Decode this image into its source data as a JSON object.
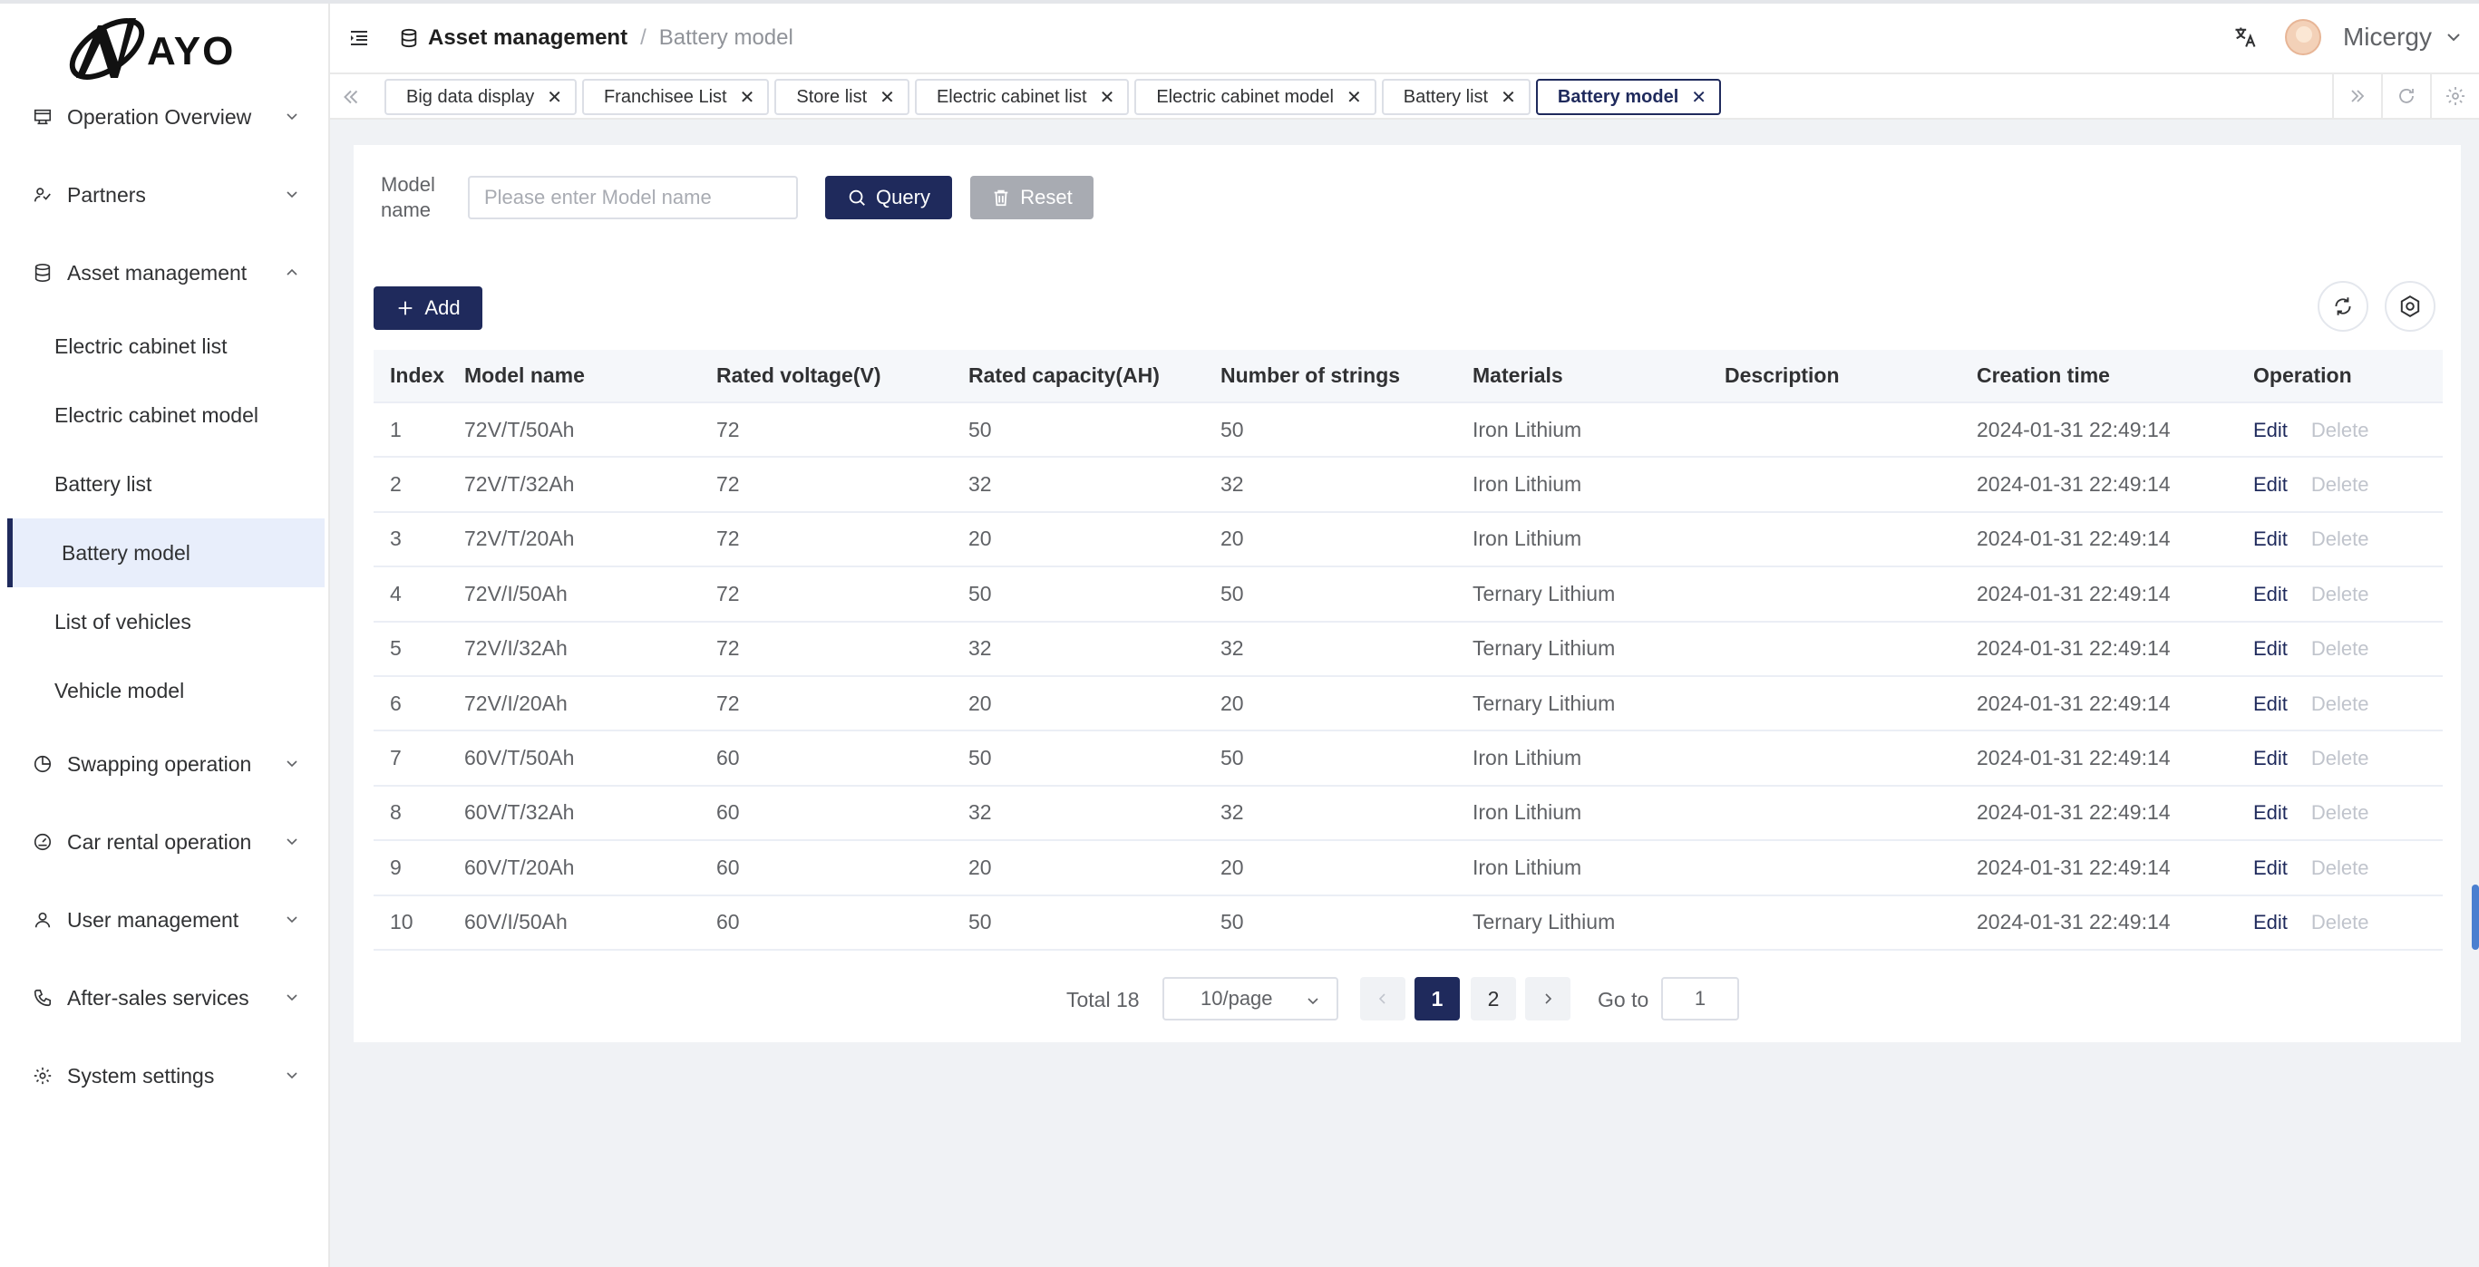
{
  "logo": {
    "text": "AYO"
  },
  "sidebar": {
    "groups": [
      {
        "label": "Operation Overview",
        "icon": "dashboard-icon"
      },
      {
        "label": "Partners",
        "icon": "partners-icon"
      },
      {
        "label": "Asset management",
        "icon": "database-icon",
        "expanded": true,
        "items": [
          "Electric cabinet list",
          "Electric cabinet model",
          "Battery list",
          "Battery model",
          "List of vehicles",
          "Vehicle model"
        ],
        "active": "Battery model"
      },
      {
        "label": "Swapping operation",
        "icon": "pie-chart-icon"
      },
      {
        "label": "Car rental operation",
        "icon": "gauge-icon"
      },
      {
        "label": "User management",
        "icon": "user-icon"
      },
      {
        "label": "After-sales services",
        "icon": "phone-icon"
      },
      {
        "label": "System settings",
        "icon": "gear-icon"
      }
    ]
  },
  "header": {
    "breadcrumb": [
      "Asset management",
      "Battery model"
    ],
    "user": "Micergy"
  },
  "tabs": [
    "Big data display",
    "Franchisee List",
    "Store list",
    "Electric cabinet list",
    "Electric cabinet model",
    "Battery list",
    "Battery model"
  ],
  "active_tab": "Battery model",
  "search": {
    "label": "Model name",
    "placeholder": "Please enter Model name",
    "query_label": "Query",
    "reset_label": "Reset"
  },
  "add_label": "Add",
  "table": {
    "columns": [
      "Index",
      "Model name",
      "Rated voltage(V)",
      "Rated capacity(AH)",
      "Number of strings",
      "Materials",
      "Description",
      "Creation time",
      "Operation"
    ],
    "rows": [
      [
        "1",
        "72V/T/50Ah",
        "72",
        "50",
        "50",
        "Iron Lithium",
        "",
        "2024-01-31 22:49:14"
      ],
      [
        "2",
        "72V/T/32Ah",
        "72",
        "32",
        "32",
        "Iron Lithium",
        "",
        "2024-01-31 22:49:14"
      ],
      [
        "3",
        "72V/T/20Ah",
        "72",
        "20",
        "20",
        "Iron Lithium",
        "",
        "2024-01-31 22:49:14"
      ],
      [
        "4",
        "72V/I/50Ah",
        "72",
        "50",
        "50",
        "Ternary Lithium",
        "",
        "2024-01-31 22:49:14"
      ],
      [
        "5",
        "72V/I/32Ah",
        "72",
        "32",
        "32",
        "Ternary Lithium",
        "",
        "2024-01-31 22:49:14"
      ],
      [
        "6",
        "72V/I/20Ah",
        "72",
        "20",
        "20",
        "Ternary Lithium",
        "",
        "2024-01-31 22:49:14"
      ],
      [
        "7",
        "60V/T/50Ah",
        "60",
        "50",
        "50",
        "Iron Lithium",
        "",
        "2024-01-31 22:49:14"
      ],
      [
        "8",
        "60V/T/32Ah",
        "60",
        "32",
        "32",
        "Iron Lithium",
        "",
        "2024-01-31 22:49:14"
      ],
      [
        "9",
        "60V/T/20Ah",
        "60",
        "20",
        "20",
        "Iron Lithium",
        "",
        "2024-01-31 22:49:14"
      ],
      [
        "10",
        "60V/I/50Ah",
        "60",
        "50",
        "50",
        "Ternary Lithium",
        "",
        "2024-01-31 22:49:14"
      ]
    ],
    "edit_label": "Edit",
    "delete_label": "Delete"
  },
  "pagination": {
    "total_text": "Total 18",
    "page_size": "10/page",
    "pages": [
      "1",
      "2"
    ],
    "current": "1",
    "goto_label": "Go to",
    "goto_value": "1"
  },
  "colors": {
    "primary": "#1f2a5c",
    "active_bg": "#e8eefb",
    "disabled": "#a8abb2"
  }
}
